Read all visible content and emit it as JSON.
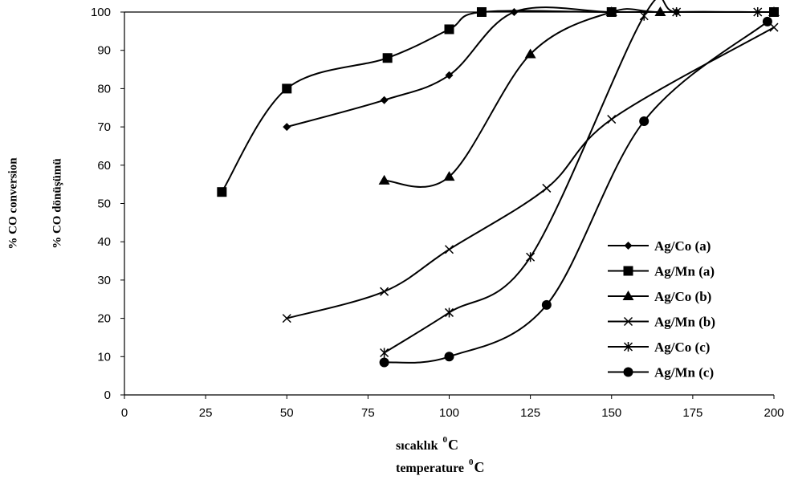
{
  "ylabel": [
    "% CO conversion",
    "% CO dönüşümü"
  ],
  "xlabel": [
    {
      "text": "sıcaklık",
      "sup": "0",
      "unit": "C"
    },
    {
      "text": "temperature",
      "sup": "0",
      "unit": "C"
    }
  ],
  "chart_data": {
    "type": "line",
    "xlim": [
      0,
      200
    ],
    "ylim": [
      0,
      100
    ],
    "x_ticks": [
      "0",
      "25",
      "50",
      "75",
      "100",
      "125",
      "150",
      "175",
      "200"
    ],
    "y_ticks": [
      "0",
      "10",
      "20",
      "30",
      "40",
      "50",
      "60",
      "70",
      "80",
      "90",
      "100"
    ],
    "grid": false,
    "legend_position": "lower-right",
    "series": [
      {
        "name": "Ag/Co (a)",
        "marker": "diamond",
        "x": [
          50,
          80,
          100,
          120,
          150,
          170,
          200
        ],
        "y": [
          70,
          77,
          83.5,
          100,
          100,
          100,
          100
        ]
      },
      {
        "name": "Ag/Mn (a)",
        "marker": "square",
        "x": [
          30,
          50,
          81,
          100,
          110,
          150,
          200
        ],
        "y": [
          53,
          80,
          88,
          95.5,
          100,
          100,
          100
        ]
      },
      {
        "name": "Ag/Co (b)",
        "marker": "triangle",
        "x": [
          80,
          100,
          125,
          150,
          165,
          200
        ],
        "y": [
          56,
          57,
          89,
          100,
          100,
          100
        ]
      },
      {
        "name": "Ag/Mn (b)",
        "marker": "x",
        "x": [
          50,
          80,
          100,
          130,
          150,
          200
        ],
        "y": [
          20,
          27,
          38,
          54,
          72,
          96
        ]
      },
      {
        "name": "Ag/Co (c)",
        "marker": "star",
        "x": [
          80,
          100,
          125,
          160,
          170,
          195
        ],
        "y": [
          11,
          21.5,
          36,
          99,
          100,
          100
        ]
      },
      {
        "name": "Ag/Mn (c)",
        "marker": "circle",
        "x": [
          80,
          100,
          130,
          160,
          198
        ],
        "y": [
          8.5,
          10,
          23.5,
          71.5,
          97.5
        ]
      }
    ]
  }
}
